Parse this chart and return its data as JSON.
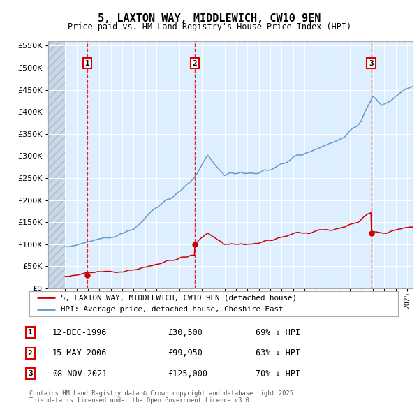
{
  "title": "5, LAXTON WAY, MIDDLEWICH, CW10 9EN",
  "subtitle": "Price paid vs. HM Land Registry's House Price Index (HPI)",
  "legend_red": "5, LAXTON WAY, MIDDLEWICH, CW10 9EN (detached house)",
  "legend_blue": "HPI: Average price, detached house, Cheshire East",
  "transactions": [
    {
      "label": "1",
      "date_num": 1996.95,
      "price": 30500
    },
    {
      "label": "2",
      "date_num": 2006.37,
      "price": 99950
    },
    {
      "label": "3",
      "date_num": 2021.86,
      "price": 125000
    }
  ],
  "table_rows": [
    {
      "num": "1",
      "date": "12-DEC-1996",
      "price": "£30,500",
      "pct": "69% ↓ HPI"
    },
    {
      "num": "2",
      "date": "15-MAY-2006",
      "price": "£99,950",
      "pct": "63% ↓ HPI"
    },
    {
      "num": "3",
      "date": "08-NOV-2021",
      "price": "£125,000",
      "pct": "70% ↓ HPI"
    }
  ],
  "footnote": "Contains HM Land Registry data © Crown copyright and database right 2025.\nThis data is licensed under the Open Government Licence v3.0.",
  "hpi_color": "#6699cc",
  "red_color": "#cc0000",
  "bg_color": "#ddeeff",
  "grid_color": "#ffffff",
  "vline_color": "#dd0000",
  "ylim": [
    0,
    560000
  ],
  "yticks": [
    0,
    50000,
    100000,
    150000,
    200000,
    250000,
    300000,
    350000,
    400000,
    450000,
    500000,
    550000
  ],
  "xlim_start": 1993.5,
  "xlim_end": 2025.5,
  "hatch_xlim": 1995.0
}
